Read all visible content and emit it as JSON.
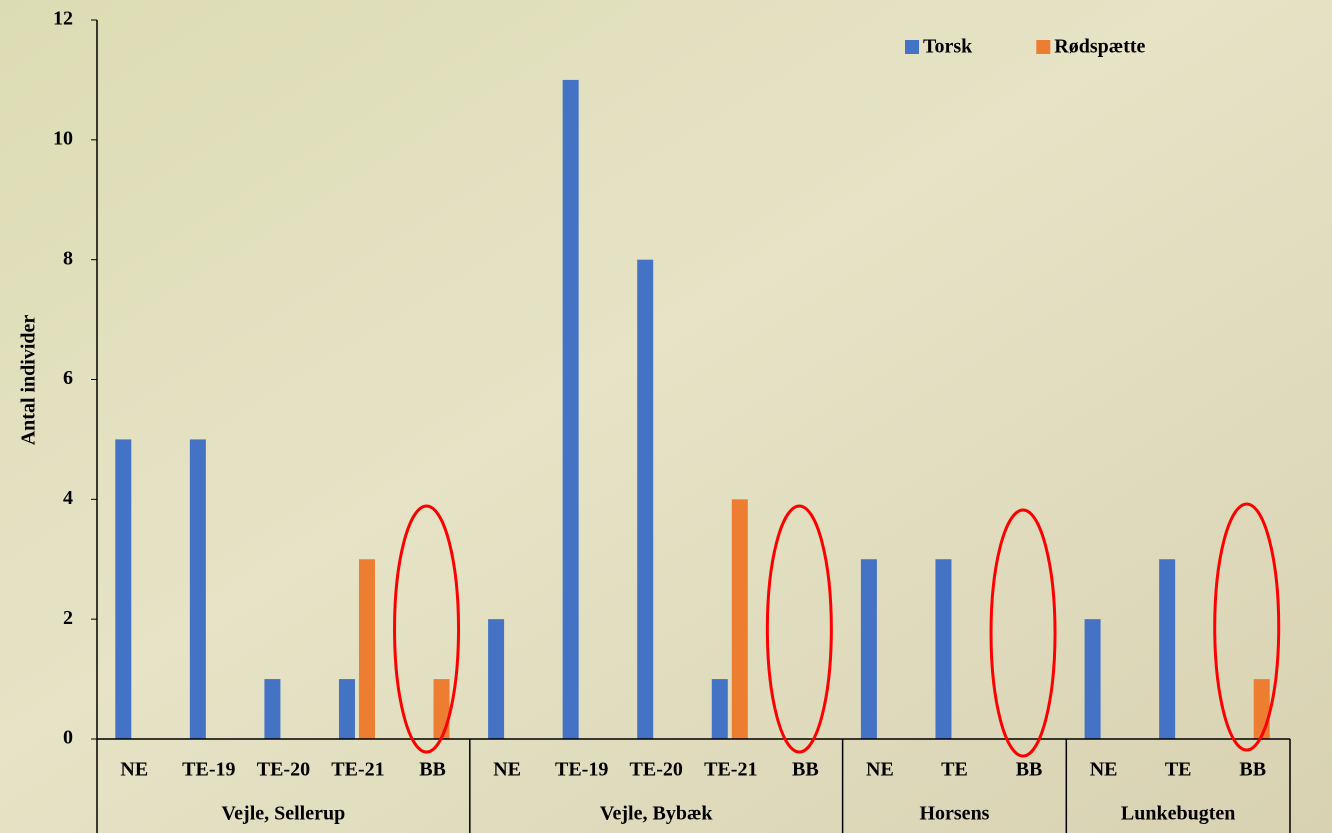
{
  "chart_data": {
    "type": "bar",
    "y_label": "Antal individer",
    "groups": [
      {
        "name": "Vejle, Sellerup",
        "categories": [
          "NE",
          "TE-19",
          "TE-20",
          "TE-21",
          "BB"
        ]
      },
      {
        "name": "Vejle, Bybæk",
        "categories": [
          "NE",
          "TE-19",
          "TE-20",
          "TE-21",
          "BB"
        ]
      },
      {
        "name": "Horsens",
        "categories": [
          "NE",
          "TE",
          "BB"
        ]
      },
      {
        "name": "Lunkebugten",
        "categories": [
          "NE",
          "TE",
          "BB"
        ]
      }
    ],
    "series": [
      {
        "name": "Torsk",
        "color": "#4472c4",
        "values": [
          5,
          5,
          1,
          1,
          0,
          2,
          11,
          8,
          1,
          0,
          3,
          3,
          0,
          2,
          3,
          0
        ]
      },
      {
        "name": "Rødspætte",
        "color": "#ed7d31",
        "values": [
          0,
          0,
          0,
          3,
          1,
          0,
          0,
          0,
          4,
          0,
          0,
          0,
          0,
          0,
          0,
          1
        ]
      }
    ],
    "ylim": [
      0,
      12
    ],
    "yticks": [
      0,
      2,
      4,
      6,
      8,
      10,
      12
    ],
    "legend": "top-right"
  }
}
